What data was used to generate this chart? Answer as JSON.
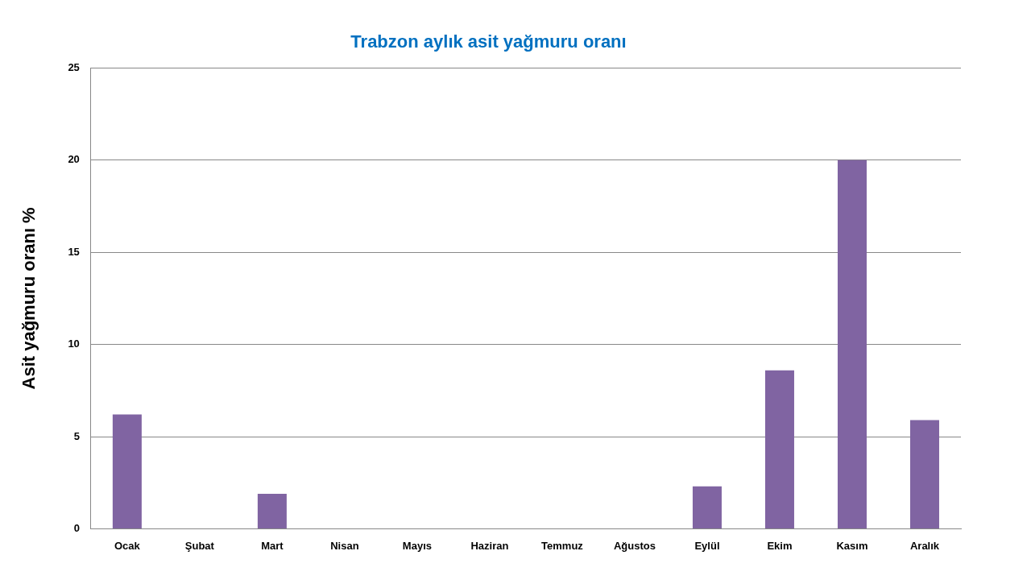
{
  "chart_data": {
    "type": "bar",
    "title": "Trabzon aylık asit yağmuru oranı",
    "ylabel": "Asit yağmuru oranı %",
    "categories": [
      "Ocak",
      "Şubat",
      "Mart",
      "Nisan",
      "Mayıs",
      "Haziran",
      "Temmuz",
      "Ağustos",
      "Eylül",
      "Ekim",
      "Kasım",
      "Aralık"
    ],
    "series": [
      {
        "color": "#8064a2",
        "values": [
          6.2,
          0,
          1.9,
          0,
          0,
          0,
          0,
          0,
          2.3,
          8.6,
          20,
          5.9
        ]
      }
    ],
    "ylim": [
      0,
      25
    ],
    "yticks": [
      0,
      5,
      10,
      15,
      20,
      25
    ],
    "grid": "y",
    "legend": false
  }
}
